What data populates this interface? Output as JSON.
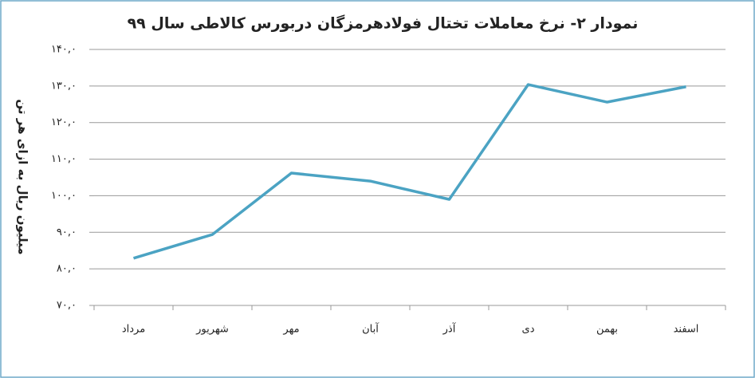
{
  "chart_data": {
    "type": "line",
    "title": "نمودار ۲- نرخ معاملات تختال فولادهرمزگان دربورس کالاطی سال ۹۹",
    "y_label": "میلیون ریال به ازای هر تن",
    "categories": [
      "مرداد",
      "شهریور",
      "مهر",
      "آبان",
      "آذر",
      "دی",
      "بهمن",
      "اسفند"
    ],
    "series": [
      {
        "name": "نرخ",
        "color": "#4ba3c3",
        "values": [
          82.9,
          89.4,
          106.2,
          104.0,
          99.0,
          130.4,
          125.6,
          129.8
        ]
      }
    ],
    "ylim": [
      70,
      140
    ],
    "yticks": [
      {
        "value": 70,
        "label": "۷۰,۰"
      },
      {
        "value": 80,
        "label": "۸۰,۰"
      },
      {
        "value": 90,
        "label": "۹۰,۰"
      },
      {
        "value": 100,
        "label": "۱۰۰,۰"
      },
      {
        "value": 110,
        "label": "۱۱۰,۰"
      },
      {
        "value": 120,
        "label": "۱۲۰,۰"
      },
      {
        "value": 130,
        "label": "۱۳۰,۰"
      },
      {
        "value": 140,
        "label": "۱۴۰,۰"
      }
    ],
    "grid": true
  }
}
